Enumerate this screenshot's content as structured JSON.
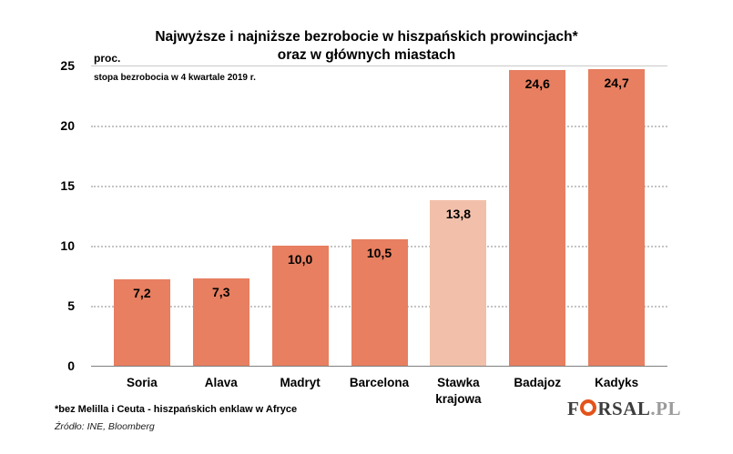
{
  "header": {
    "title_line1": "Najwyższe i najniższe bezrobocie w hiszpańskich prowincjach*",
    "title_line2": "oraz w głównych miastach"
  },
  "axis": {
    "unit_label": "proc.",
    "subtitle": "stopa bezrobocia w 4 kwartale 2019 r."
  },
  "chart_data": {
    "type": "bar",
    "title": "Najwyższe i najniższe bezrobocie w hiszpańskich prowincjach* oraz w głównych miastach",
    "subtitle": "stopa bezrobocia w 4 kwartale 2019 r.",
    "ylabel": "proc.",
    "xlabel": "",
    "categories": [
      "Soria",
      "Alava",
      "Madryt",
      "Barcelona",
      "Stawka krajowa",
      "Badajoz",
      "Kadyks"
    ],
    "values": [
      7.2,
      7.3,
      10.0,
      10.5,
      13.8,
      24.6,
      24.7
    ],
    "value_labels": [
      "7,2",
      "7,3",
      "10,0",
      "10,5",
      "13,8",
      "24,6",
      "24,7"
    ],
    "ylim": [
      0,
      25
    ],
    "yticks": [
      0,
      5,
      10,
      15,
      20,
      25
    ],
    "grid": "horizontal-dotted",
    "legend": "none",
    "bar_color": "#e77f60",
    "highlight_color": "#f2c0aa",
    "highlight_index": 4
  },
  "footer": {
    "footnote": "*bez Melilla i Ceuta - hiszpańskich enklaw w Afryce",
    "source": "Źródło: INE, Bloomberg"
  },
  "logo": {
    "prefix": "F",
    "middle": "RSAL",
    "suffix": ".PL",
    "ring_color": "#e4531b"
  }
}
